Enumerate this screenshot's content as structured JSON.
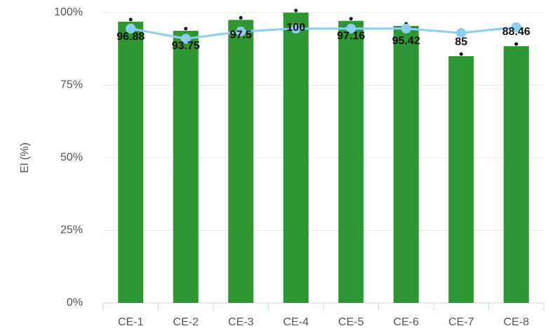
{
  "chart_data": {
    "type": "bar",
    "y_label": "El (%)",
    "categories": [
      "CE-1",
      "CE-2",
      "CE-3",
      "CE-4",
      "CE-5",
      "CE-6",
      "CE-7",
      "CE-8"
    ],
    "series": [
      {
        "type": "bar",
        "color": "#2e9632",
        "values": [
          96.88,
          93.75,
          97.5,
          100,
          97.16,
          95.42,
          85,
          88.46
        ]
      },
      {
        "type": "line",
        "color": "#8ccdf2",
        "values": [
          94.5,
          91,
          93.5,
          94.5,
          94.5,
          94.5,
          93,
          95
        ]
      }
    ],
    "ylim": [
      0,
      100
    ],
    "yticks": [
      {
        "value": 0,
        "label": "0%"
      },
      {
        "value": 25,
        "label": "25%"
      },
      {
        "value": 50,
        "label": "50%"
      },
      {
        "value": 75,
        "label": "75%"
      },
      {
        "value": 100,
        "label": "100%"
      }
    ],
    "grid": true
  }
}
